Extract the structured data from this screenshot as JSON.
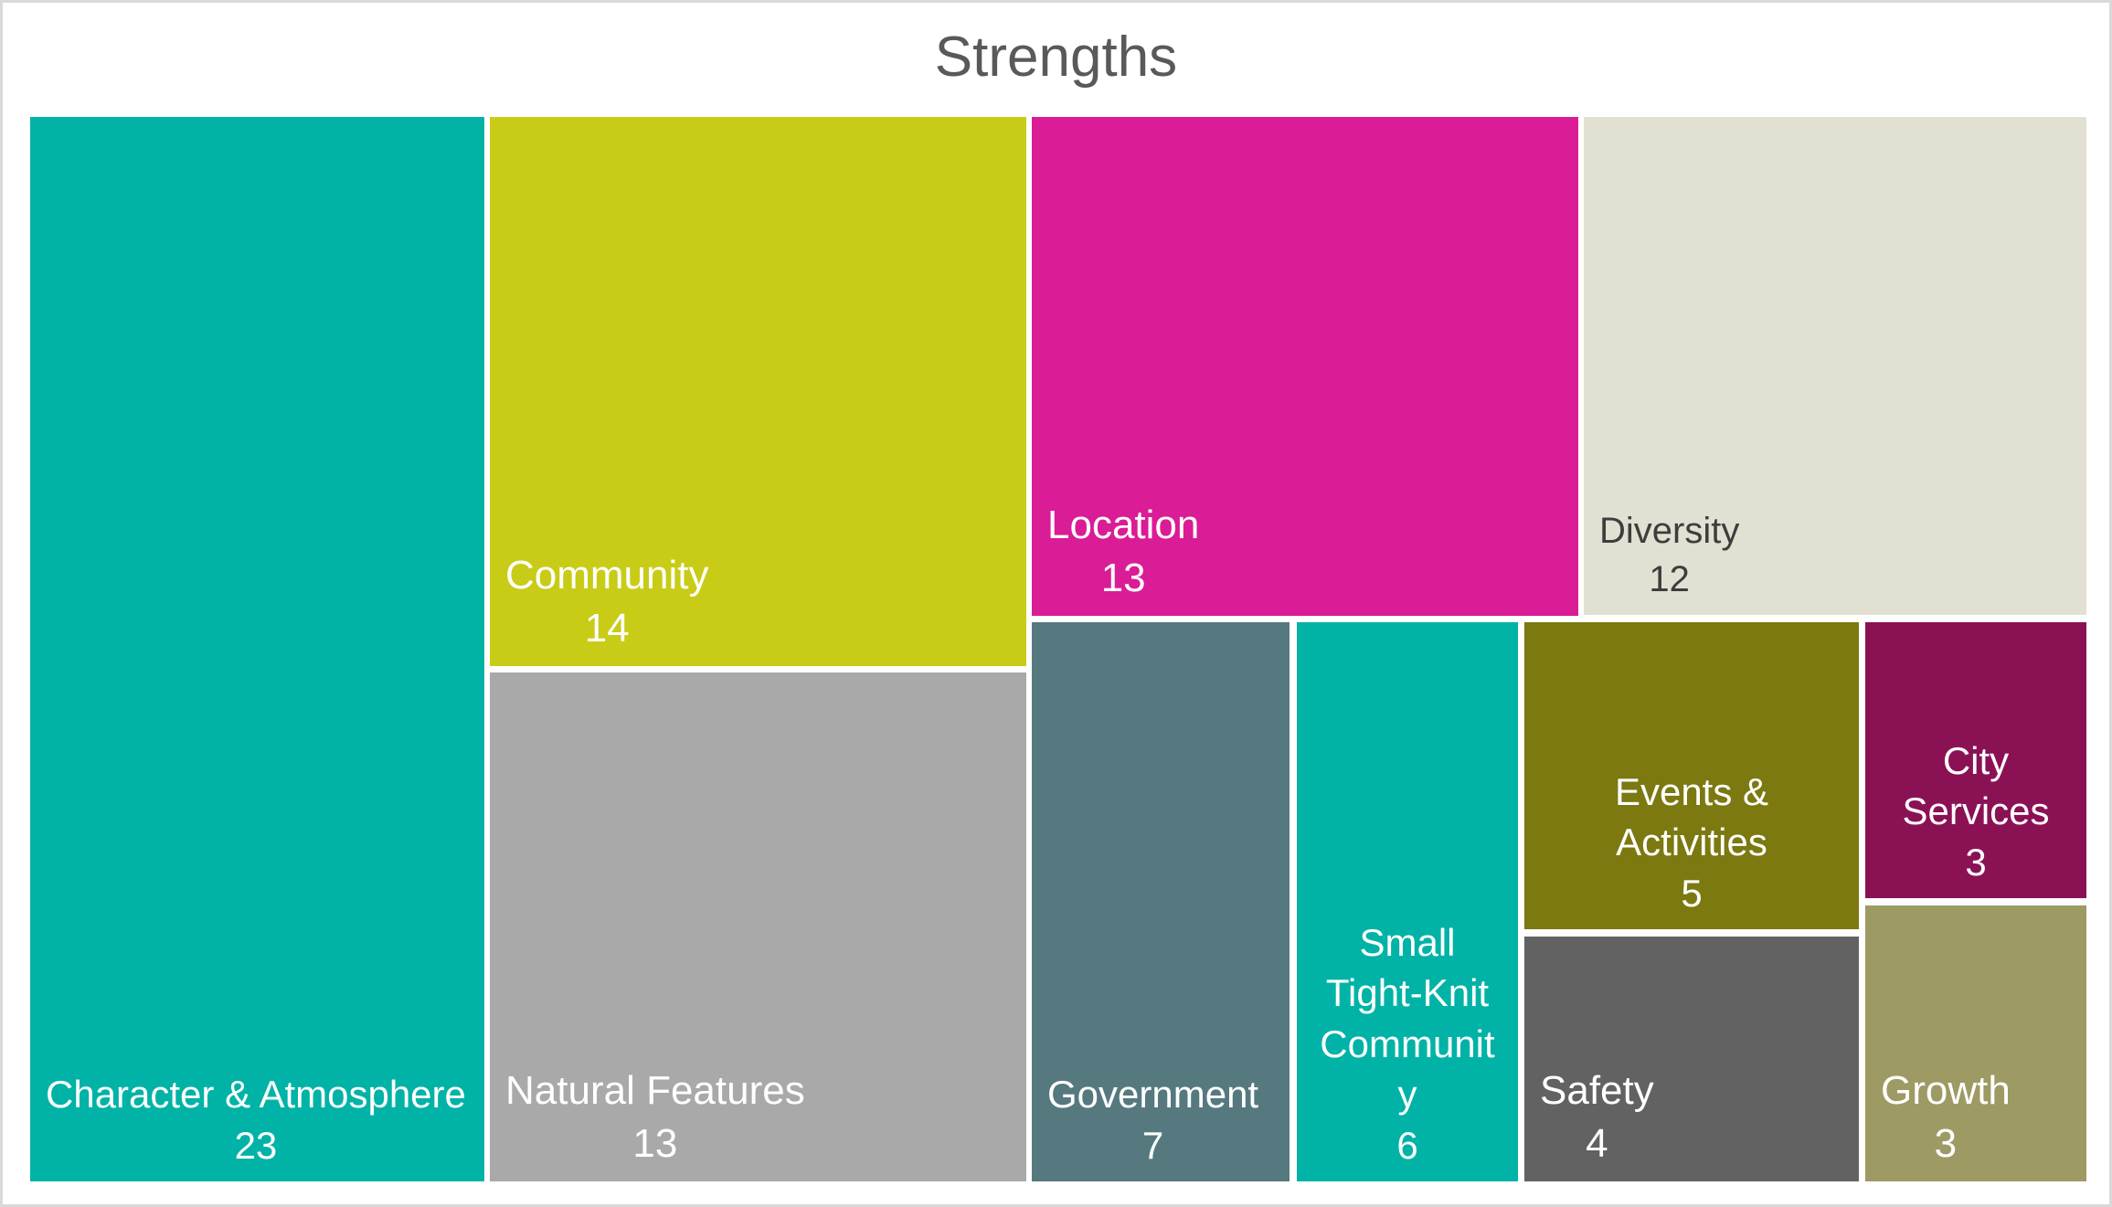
{
  "title": {
    "text": "Strengths",
    "color": "#595959"
  },
  "chart_data": {
    "type": "treemap",
    "title": "Strengths",
    "legend": "none",
    "label_position": "bottom-inside",
    "background": "#FFFFFF",
    "border_color": "#D9D9D9",
    "nodes": [
      {
        "label": "Character & Atmosphere",
        "value": 23,
        "color": "#00B3A6",
        "text_color": "#FFFFFF"
      },
      {
        "label": "Community",
        "value": 14,
        "color": "#C8CC17",
        "text_color": "#FFFFFF"
      },
      {
        "label": "Natural Features",
        "value": 13,
        "color": "#A9A9A9",
        "text_color": "#FFFFFF"
      },
      {
        "label": "Location",
        "value": 13,
        "color": "#DA1C96",
        "text_color": "#FFFFFF"
      },
      {
        "label": "Diversity",
        "value": 12,
        "color": "#E2E0D2",
        "text_color": "#3D3D3D"
      },
      {
        "label": "Government",
        "value": 7,
        "color": "#56797F",
        "text_color": "#FFFFFF"
      },
      {
        "label": "Small Tight-Knit Community",
        "value": 6,
        "color": "#00B3A6",
        "text_color": "#FFFFFF"
      },
      {
        "label": "Events & Activities",
        "value": 5,
        "color": "#7B7910",
        "text_color": "#FFFFFF"
      },
      {
        "label": "Safety",
        "value": 4,
        "color": "#626262",
        "text_color": "#FFFFFF"
      },
      {
        "label": "City Services",
        "value": 3,
        "color": "#8B1155",
        "text_color": "#FFFFFF"
      },
      {
        "label": "Growth",
        "value": 3,
        "color": "#9E9A64",
        "text_color": "#FFFFFF"
      }
    ]
  }
}
